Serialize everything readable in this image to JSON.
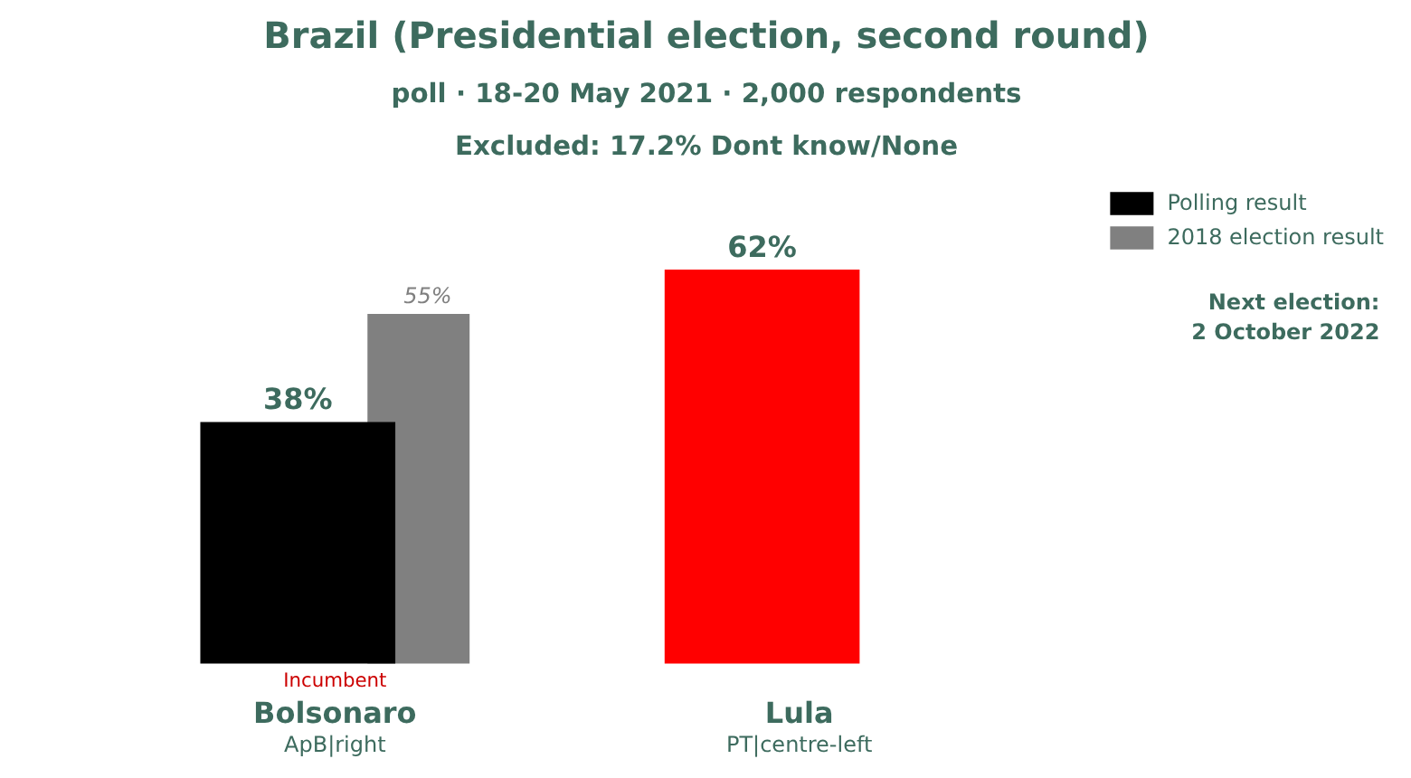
{
  "chart_data": {
    "type": "bar",
    "title": "Brazil (Presidential election, second round)",
    "subtitle": "poll · 18-20 May 2021 · 2,000 respondents",
    "categories": [
      "Bolsonaro",
      "Lula"
    ],
    "series": [
      {
        "name": "Polling result",
        "colors": [
          "#000000",
          "#ff0000"
        ],
        "values": [
          38,
          62
        ],
        "value_labels": [
          "38%",
          "62%"
        ]
      },
      {
        "name": "2018 election result",
        "color": "#808080",
        "values": [
          55,
          null
        ],
        "value_labels": [
          "55%",
          null
        ]
      }
    ],
    "annotations": [
      "Excluded: 17.2% Dont know/None",
      "Next election:\n2 October 2022",
      {
        "text": "Incumbent",
        "x": "Bolsonaro",
        "y": 0
      },
      "ApB|right",
      "PT|centre-left"
    ],
    "legend": "top right",
    "grid": false
  }
}
